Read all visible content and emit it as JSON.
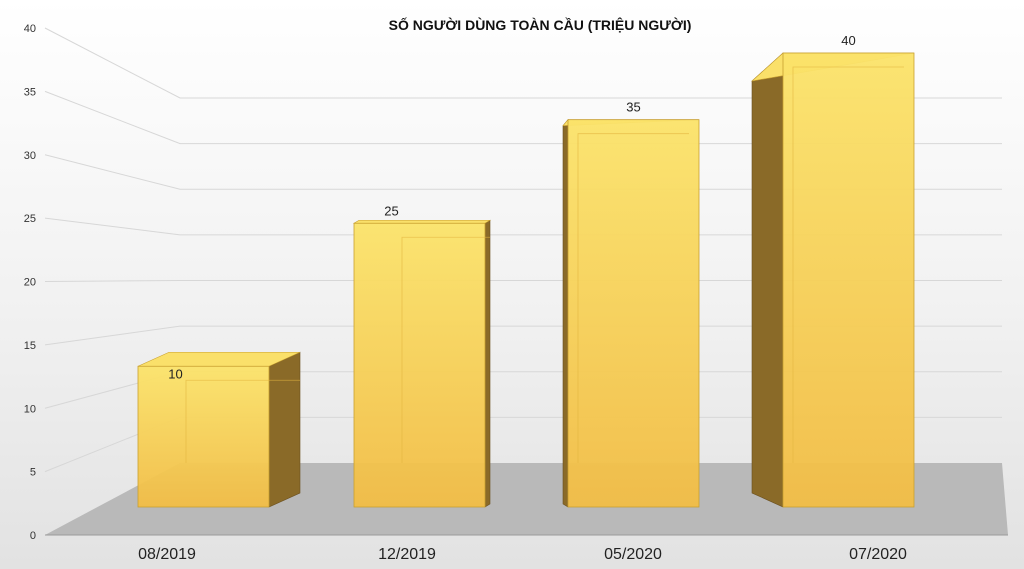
{
  "chart_data": {
    "type": "bar",
    "title": "SỐ NGƯỜI DÙNG TOÀN CẦU (TRIỆU NGƯỜI)",
    "xlabel": "",
    "ylabel": "",
    "categories": [
      "08/2019",
      "12/2019",
      "05/2020",
      "07/2020"
    ],
    "values": [
      10,
      25,
      35,
      40
    ],
    "data_labels": [
      "10",
      "25",
      "35",
      "40"
    ],
    "yticks": [
      "0",
      "5",
      "10",
      "15",
      "20",
      "25",
      "30",
      "35",
      "40"
    ],
    "ylim": [
      0,
      40
    ],
    "grid": true,
    "legend": "none",
    "style": "3d-column",
    "colors": {
      "bar_front": "#f6c64a",
      "bar_top": "#fae06a",
      "bar_side": "#8a6a28",
      "floor": "#b9b9b9"
    }
  }
}
